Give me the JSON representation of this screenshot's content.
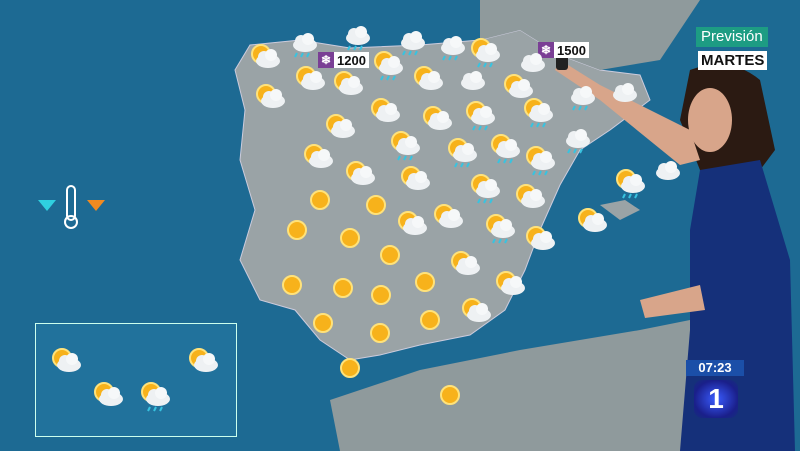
{
  "overlay": {
    "title": "Previsión",
    "day": "MARTES",
    "clock": "07:23",
    "channel_logo": "1"
  },
  "snow_levels": [
    {
      "icon": "snowflake-icon",
      "value": "1200"
    },
    {
      "icon": "snowflake-icon",
      "value": "1500"
    }
  ],
  "legend": {
    "icons": [
      "temp-down-arrow",
      "thermometer-icon",
      "temp-up-arrow"
    ],
    "colors": {
      "down": "#2fd0e0",
      "up": "#f08a20"
    }
  },
  "colors": {
    "sea": "#1d6a93",
    "land": "#9aa3a6",
    "title_bg": "#1d9c83",
    "clock_bg": "#1b4fa8",
    "dress": "#15307a"
  },
  "peninsula_forecast": [
    "sun-cloud",
    "cloud-rain",
    "cloud-rain",
    "cloud-rain",
    "cloud-rain",
    "sun-cloud-rain",
    "cloud",
    "sun-cloud",
    "sun-cloud",
    "sun-cloud-rain",
    "sun-cloud",
    "cloud",
    "sun-cloud",
    "cloud-rain",
    "cloud",
    "sun-cloud",
    "sun-cloud",
    "sun-cloud",
    "sun-cloud-rain",
    "sun-cloud-rain",
    "sun-cloud",
    "sun-cloud-rain",
    "sun-cloud-rain",
    "sun-cloud-rain",
    "sun-cloud-rain",
    "cloud-rain",
    "sun-cloud",
    "sun-cloud",
    "sun-cloud",
    "sun-cloud-rain",
    "sun-cloud",
    "sun-cloud-rain",
    "cloud",
    "sun",
    "sun",
    "sun-cloud",
    "sun-cloud",
    "sun-cloud-rain",
    "sun-cloud",
    "sun-cloud",
    "sun",
    "sun",
    "sun",
    "sun-cloud",
    "sun-cloud",
    "sun",
    "sun",
    "sun",
    "sun",
    "sun-cloud",
    "sun",
    "sun",
    "sun",
    "sun",
    "sun"
  ],
  "canarias_forecast": [
    "sun-cloud",
    "sun-cloud",
    "sun-cloud-rain",
    "sun-cloud"
  ]
}
